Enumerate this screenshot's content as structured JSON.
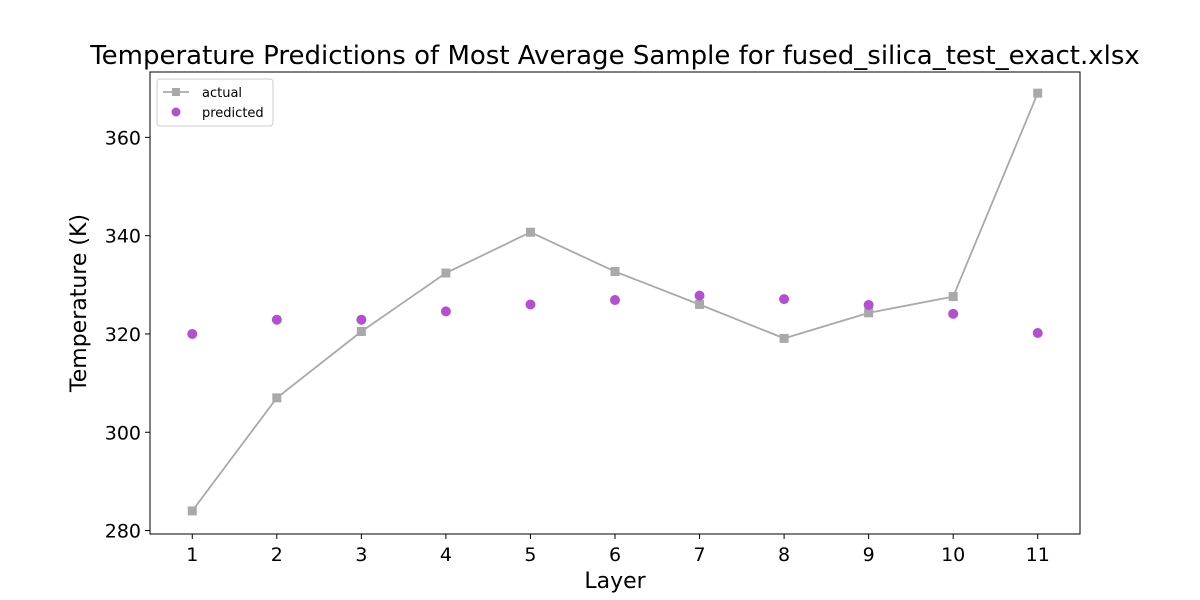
{
  "chart_data": {
    "type": "line",
    "title": "Temperature Predictions of Most Average Sample for fused_silica_test_exact.xlsx",
    "xlabel": "Layer",
    "ylabel": "Temperature (K)",
    "x": [
      1,
      2,
      3,
      4,
      5,
      6,
      7,
      8,
      9,
      10,
      11
    ],
    "xlim": [
      0.5,
      11.5
    ],
    "ylim": [
      279.3,
      373.3
    ],
    "xticks": [
      "1",
      "2",
      "3",
      "4",
      "5",
      "6",
      "7",
      "8",
      "9",
      "10",
      "11"
    ],
    "yticks": [
      "280",
      "300",
      "320",
      "340",
      "360"
    ],
    "grid": false,
    "legend": "top-left",
    "series": [
      {
        "name": "actual",
        "kind": "line",
        "marker": "square",
        "color": "#a9a9a9",
        "values": [
          284.0,
          307.0,
          320.5,
          332.4,
          340.7,
          332.7,
          326.0,
          319.1,
          324.3,
          327.6,
          369.0
        ]
      },
      {
        "name": "predicted",
        "kind": "scatter",
        "marker": "circle",
        "color": "#b54fd1",
        "values": [
          320.0,
          322.9,
          322.9,
          324.6,
          326.0,
          326.9,
          327.8,
          327.1,
          325.9,
          324.1,
          320.2
        ]
      }
    ]
  }
}
